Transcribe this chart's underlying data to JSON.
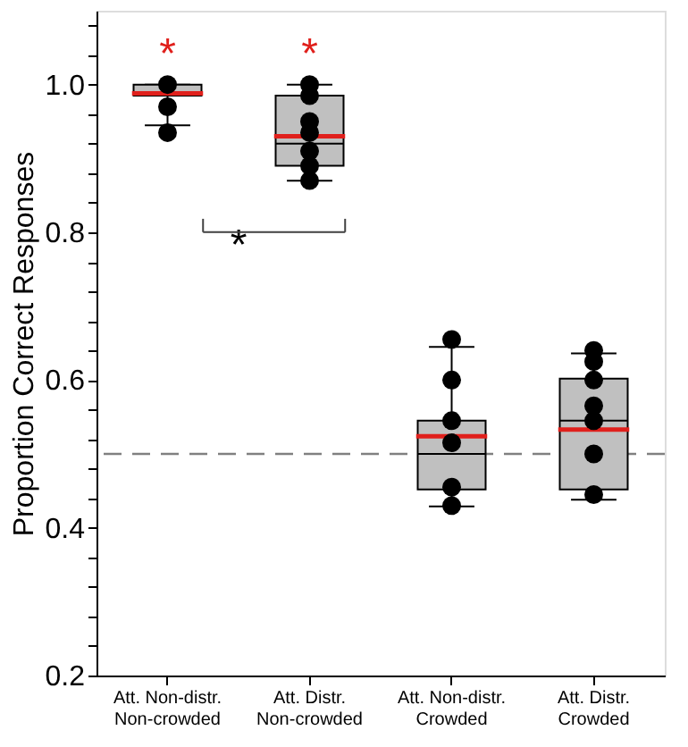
{
  "chart_data": {
    "type": "box",
    "ylabel": "Proportion Correct Responses",
    "categories": [
      "Att. Non-distr.\nNon-crowded",
      "Att. Distr.\nNon-crowded",
      "Att. Non-distr.\nCrowded",
      "Att. Distr.\nCrowded"
    ],
    "series": [
      {
        "color": "#c0c0c0",
        "boxes": [
          {
            "low": 0.945,
            "q1": 0.985,
            "median": 0.99,
            "q3": 1.0,
            "high": 1.0,
            "mean": 0.988
          },
          {
            "low": 0.87,
            "q1": 0.89,
            "median": 0.92,
            "q3": 0.985,
            "high": 1.0,
            "mean": 0.93
          },
          {
            "low": 0.429,
            "q1": 0.452,
            "median": 0.5,
            "q3": 0.545,
            "high": 0.645,
            "mean": 0.524
          },
          {
            "low": 0.438,
            "q1": 0.452,
            "median": 0.545,
            "q3": 0.602,
            "high": 0.636,
            "mean": 0.533
          }
        ]
      },
      {
        "type": "scatter",
        "color": "#000000",
        "x": [
          "Att. Non-distr.\nNon-crowded",
          "Att. Non-distr.\nNon-crowded",
          "Att. Non-distr.\nNon-crowded",
          "Att. Distr.\nNon-crowded",
          "Att. Distr.\nNon-crowded",
          "Att. Distr.\nNon-crowded",
          "Att. Distr.\nNon-crowded",
          "Att. Distr.\nNon-crowded",
          "Att. Distr.\nNon-crowded",
          "Att. Distr.\nNon-crowded",
          "Att. Non-distr.\nCrowded",
          "Att. Non-distr.\nCrowded",
          "Att. Non-distr.\nCrowded",
          "Att. Non-distr.\nCrowded",
          "Att. Non-distr.\nCrowded",
          "Att. Non-distr.\nCrowded",
          "Att. Distr.\nCrowded",
          "Att. Distr.\nCrowded",
          "Att. Distr.\nCrowded",
          "Att. Distr.\nCrowded",
          "Att. Distr.\nCrowded",
          "Att. Distr.\nCrowded",
          "Att. Distr.\nCrowded"
        ],
        "values": [
          1.0,
          0.97,
          0.935,
          1.0,
          0.985,
          0.95,
          0.935,
          0.91,
          0.89,
          0.87,
          0.655,
          0.6,
          0.545,
          0.515,
          0.455,
          0.43,
          0.64,
          0.625,
          0.6,
          0.565,
          0.545,
          0.5,
          0.445
        ]
      }
    ],
    "ylim": [
      0.2,
      1.1
    ],
    "yticks": [
      {
        "value": 0.2,
        "label": "0.2"
      },
      {
        "value": 0.24,
        "label": null
      },
      {
        "value": 0.28,
        "label": null
      },
      {
        "value": 0.32,
        "label": null
      },
      {
        "value": 0.36,
        "label": null
      },
      {
        "value": 0.4,
        "label": "0.4"
      },
      {
        "value": 0.44,
        "label": null
      },
      {
        "value": 0.48,
        "label": null
      },
      {
        "value": 0.52,
        "label": null
      },
      {
        "value": 0.56,
        "label": null
      },
      {
        "value": 0.6,
        "label": "0.6"
      },
      {
        "value": 0.64,
        "label": null
      },
      {
        "value": 0.68,
        "label": null
      },
      {
        "value": 0.72,
        "label": null
      },
      {
        "value": 0.76,
        "label": null
      },
      {
        "value": 0.8,
        "label": "0.8"
      },
      {
        "value": 0.84,
        "label": null
      },
      {
        "value": 0.88,
        "label": null
      },
      {
        "value": 0.92,
        "label": null
      },
      {
        "value": 0.96,
        "label": null
      },
      {
        "value": 1.0,
        "label": "1.0"
      },
      {
        "value": 1.04,
        "label": null
      },
      {
        "value": 1.08,
        "label": null
      }
    ],
    "ref_lines": [
      {
        "axis": "y",
        "value": 0.5,
        "color": "#808080",
        "line_style": "dashed"
      }
    ],
    "annotations": [
      "*",
      "*",
      "*"
    ],
    "grid": false
  }
}
